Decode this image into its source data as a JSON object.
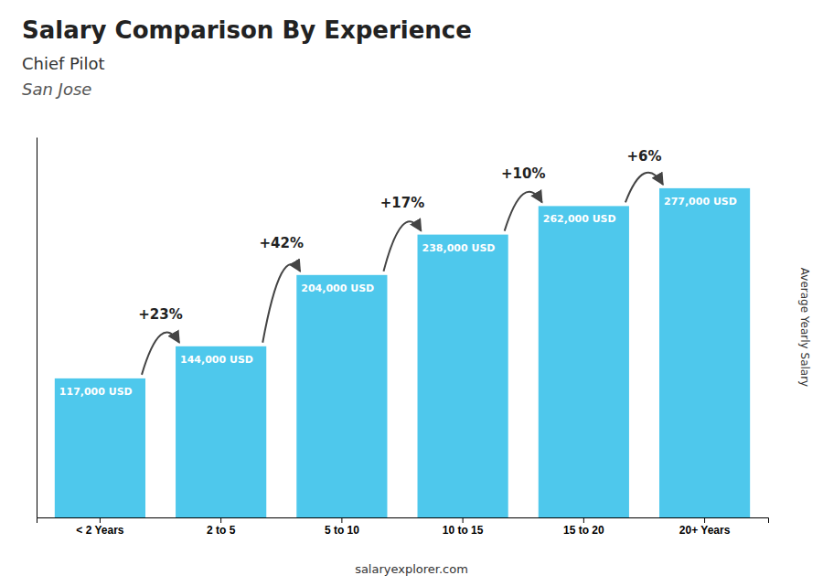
{
  "chart_data": {
    "type": "bar",
    "title": "Salary Comparison By Experience",
    "subtitle": "Chief Pilot",
    "subtitle2": "San Jose",
    "ylabel": "Average Yearly Salary",
    "footer": "salaryexplorer.com",
    "categories": [
      "< 2 Years",
      "2 to 5",
      "5 to 10",
      "10 to 15",
      "15 to 20",
      "20+ Years"
    ],
    "values": [
      117000,
      144000,
      204000,
      238000,
      262000,
      277000
    ],
    "value_labels": [
      "117,000 USD",
      "144,000 USD",
      "204,000 USD",
      "238,000 USD",
      "262,000 USD",
      "277,000 USD"
    ],
    "data_labels": true,
    "annotations": [
      "+23%",
      "+42%",
      "+17%",
      "+10%",
      "+6%"
    ],
    "color": "#4ec8ec",
    "ylim": [
      0,
      320000
    ],
    "tick_labels": "x",
    "grid": false
  }
}
